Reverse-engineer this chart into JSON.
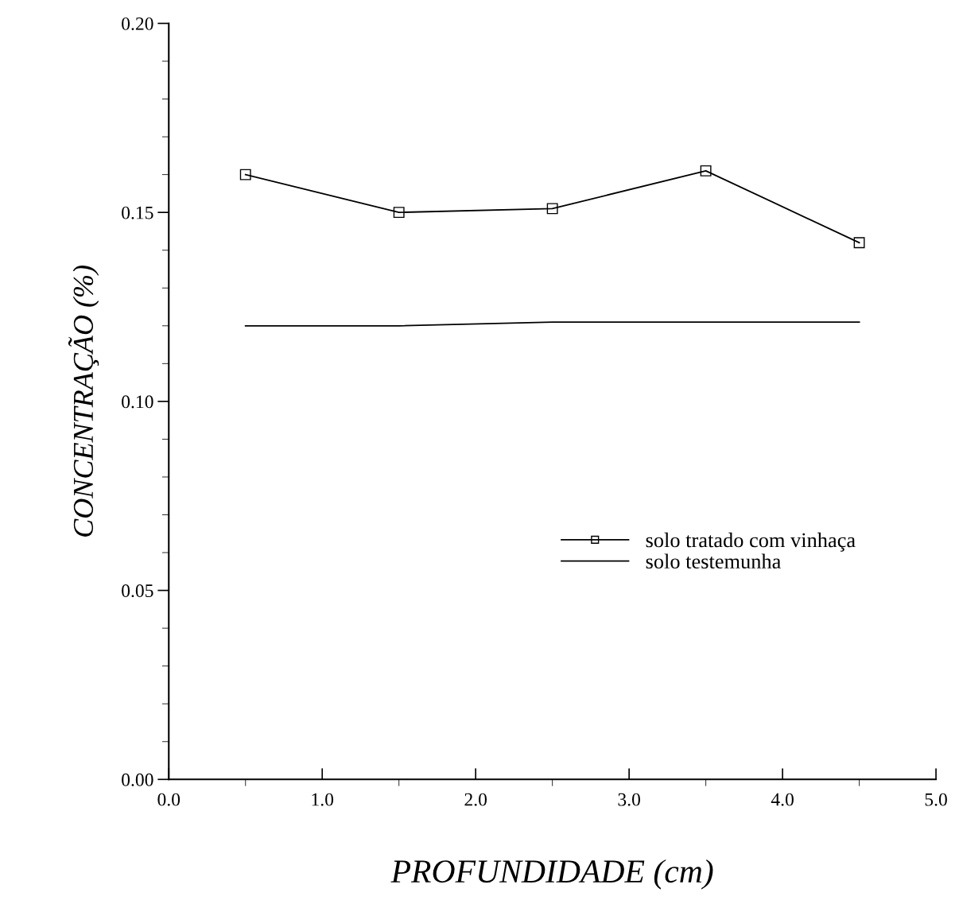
{
  "chart_data": {
    "type": "line",
    "xlabel": "PROFUNDIDADE (cm)",
    "ylabel": "CONCENTRAÇÃO (%)",
    "x": [
      0.5,
      1.5,
      2.5,
      3.5,
      4.5
    ],
    "series": [
      {
        "name": "solo tratado com vinhaça",
        "color": "#000000",
        "values": [
          0.16,
          0.15,
          0.151,
          0.161,
          0.142
        ],
        "marker": "square"
      },
      {
        "name": "solo testemunha",
        "color": "#000000",
        "values": [
          0.12,
          0.12,
          0.121,
          0.121,
          0.121
        ],
        "marker": "none"
      }
    ],
    "xlim": [
      0,
      5
    ],
    "ylim": [
      0,
      0.2
    ],
    "xticks": [
      {
        "value": 0,
        "label": "0.0"
      },
      {
        "value": 1,
        "label": "1.0"
      },
      {
        "value": 2,
        "label": "2.0"
      },
      {
        "value": 3,
        "label": "3.0"
      },
      {
        "value": 4,
        "label": "4.0"
      },
      {
        "value": 5,
        "label": "5.0"
      }
    ],
    "yticks": [
      {
        "value": 0,
        "label": "0.00"
      },
      {
        "value": 0.05,
        "label": "0.05"
      },
      {
        "value": 0.1,
        "label": "0.10"
      },
      {
        "value": 0.15,
        "label": "0.15"
      },
      {
        "value": 0.2,
        "label": "0.20"
      }
    ],
    "grid": false,
    "legend": "center right",
    "line_style": "solid"
  }
}
